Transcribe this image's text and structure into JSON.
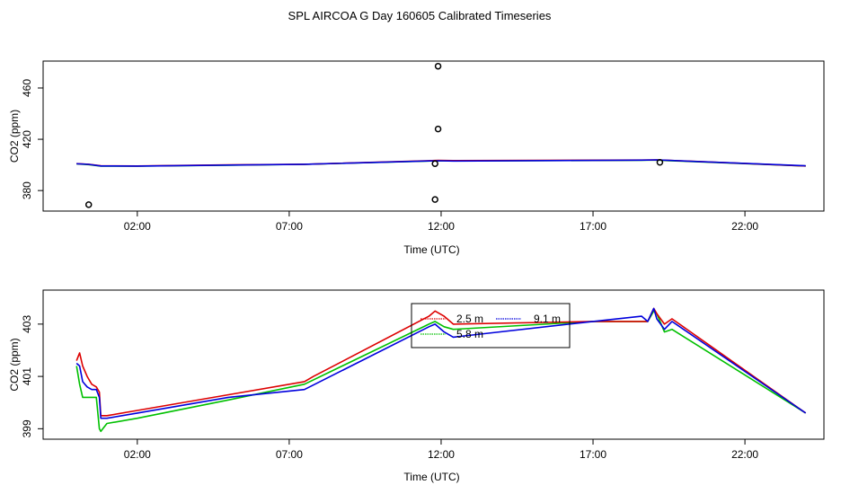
{
  "title": "SPL AIRCOA G  Day 160605  Calibrated Timeseries",
  "colors": {
    "red": "#dd0000",
    "green": "#00c000",
    "blue": "#0000dd",
    "frame": "#000000"
  },
  "chart_data": [
    {
      "type": "scatter",
      "ylabel": "CO2 (ppm)",
      "xlabel": "Time (UTC)",
      "xlim": [
        -1.1,
        24.6
      ],
      "ylim": [
        364,
        481
      ],
      "xticks": [
        2,
        7,
        12,
        17,
        22
      ],
      "xtick_labels": [
        "02:00",
        "07:00",
        "12:00",
        "17:00",
        "22:00"
      ],
      "yticks": [
        380,
        420,
        460
      ],
      "ytick_labels": [
        "380",
        "420",
        "460"
      ],
      "points": [
        {
          "x": 0.4,
          "y": 369
        },
        {
          "x": 11.8,
          "y": 373
        },
        {
          "x": 11.8,
          "y": 401
        },
        {
          "x": 11.9,
          "y": 428
        },
        {
          "x": 11.9,
          "y": 477
        },
        {
          "x": 19.2,
          "y": 402
        }
      ],
      "series": [
        {
          "name": "2.5 m",
          "color": "red",
          "x": [
            0,
            0.4,
            0.8,
            2.0,
            5.0,
            7.5,
            11.6,
            11.9,
            12.4,
            18.6,
            19.1,
            19.5,
            24.0
          ],
          "y": [
            401.0,
            400.5,
            399.3,
            399.2,
            400.0,
            400.5,
            403.3,
            403.5,
            403.4,
            403.8,
            403.9,
            403.6,
            399.2
          ]
        },
        {
          "name": "5.8 m",
          "color": "green",
          "x": [
            0,
            0.4,
            0.8,
            2.0,
            5.0,
            7.5,
            11.6,
            11.9,
            12.4,
            18.6,
            19.1,
            19.5,
            24.0
          ],
          "y": [
            400.8,
            400.2,
            399.0,
            399.0,
            399.8,
            400.4,
            403.0,
            403.2,
            403.1,
            403.6,
            403.8,
            403.3,
            399.2
          ]
        },
        {
          "name": "9.1 m",
          "color": "blue",
          "x": [
            0,
            0.4,
            0.8,
            2.0,
            5.0,
            7.5,
            11.6,
            11.9,
            12.4,
            18.6,
            19.1,
            19.5,
            24.0
          ],
          "y": [
            400.9,
            400.4,
            399.2,
            399.1,
            399.9,
            400.5,
            403.1,
            403.2,
            403.0,
            403.7,
            403.9,
            403.5,
            399.3
          ]
        }
      ]
    },
    {
      "type": "line",
      "ylabel": "CO2 (ppm)",
      "xlabel": "Time (UTC)",
      "xlim": [
        -1.1,
        24.6
      ],
      "ylim": [
        398.6,
        404.3
      ],
      "xticks": [
        2,
        7,
        12,
        17,
        22
      ],
      "xtick_labels": [
        "02:00",
        "07:00",
        "12:00",
        "17:00",
        "22:00"
      ],
      "yticks": [
        399,
        401,
        403
      ],
      "ytick_labels": [
        "399",
        "401",
        "403"
      ],
      "legend": {
        "placement": "top-center",
        "entries": [
          {
            "label": "2.5 m",
            "color": "red"
          },
          {
            "label": "9.1 m",
            "color": "blue"
          },
          {
            "label": "5.8 m",
            "color": "green"
          }
        ]
      },
      "series": [
        {
          "name": "2.5 m",
          "color": "red",
          "x": [
            0.0,
            0.1,
            0.2,
            0.35,
            0.5,
            0.65,
            0.75,
            0.8,
            1.0,
            2.0,
            5.0,
            7.5,
            7.8,
            11.6,
            11.8,
            12.1,
            12.4,
            17.0,
            18.6,
            18.8,
            19.0,
            19.1,
            19.35,
            19.6,
            24.0
          ],
          "y": [
            401.6,
            401.9,
            401.4,
            401.0,
            400.7,
            400.6,
            400.4,
            399.5,
            399.5,
            399.7,
            400.3,
            400.8,
            401.0,
            403.3,
            403.5,
            403.3,
            403.0,
            403.1,
            403.1,
            403.1,
            403.6,
            403.4,
            403.0,
            403.2,
            399.6
          ]
        },
        {
          "name": "5.8 m",
          "color": "green",
          "x": [
            0.0,
            0.1,
            0.2,
            0.35,
            0.5,
            0.65,
            0.75,
            0.8,
            1.0,
            2.0,
            5.0,
            7.5,
            11.6,
            11.8,
            12.1,
            12.4,
            17.0,
            18.6,
            18.8,
            19.0,
            19.1,
            19.35,
            19.6,
            24.0
          ],
          "y": [
            401.4,
            400.7,
            400.2,
            400.2,
            400.2,
            400.2,
            399.0,
            398.9,
            399.2,
            399.4,
            400.1,
            400.7,
            403.0,
            403.1,
            402.9,
            402.8,
            403.1,
            403.1,
            403.1,
            403.5,
            403.4,
            402.7,
            402.8,
            399.6
          ]
        },
        {
          "name": "9.1 m",
          "color": "blue",
          "x": [
            0.0,
            0.1,
            0.2,
            0.35,
            0.5,
            0.65,
            0.75,
            0.8,
            1.0,
            2.0,
            5.0,
            7.5,
            11.6,
            11.8,
            12.1,
            12.4,
            17.0,
            18.6,
            18.8,
            19.0,
            19.1,
            19.35,
            19.6,
            24.0
          ],
          "y": [
            401.5,
            401.4,
            400.8,
            400.6,
            400.5,
            400.5,
            400.2,
            399.4,
            399.4,
            399.6,
            400.2,
            400.5,
            402.9,
            403.0,
            402.7,
            402.5,
            403.1,
            403.3,
            403.1,
            403.6,
            403.2,
            402.8,
            403.1,
            399.6
          ]
        }
      ]
    }
  ]
}
